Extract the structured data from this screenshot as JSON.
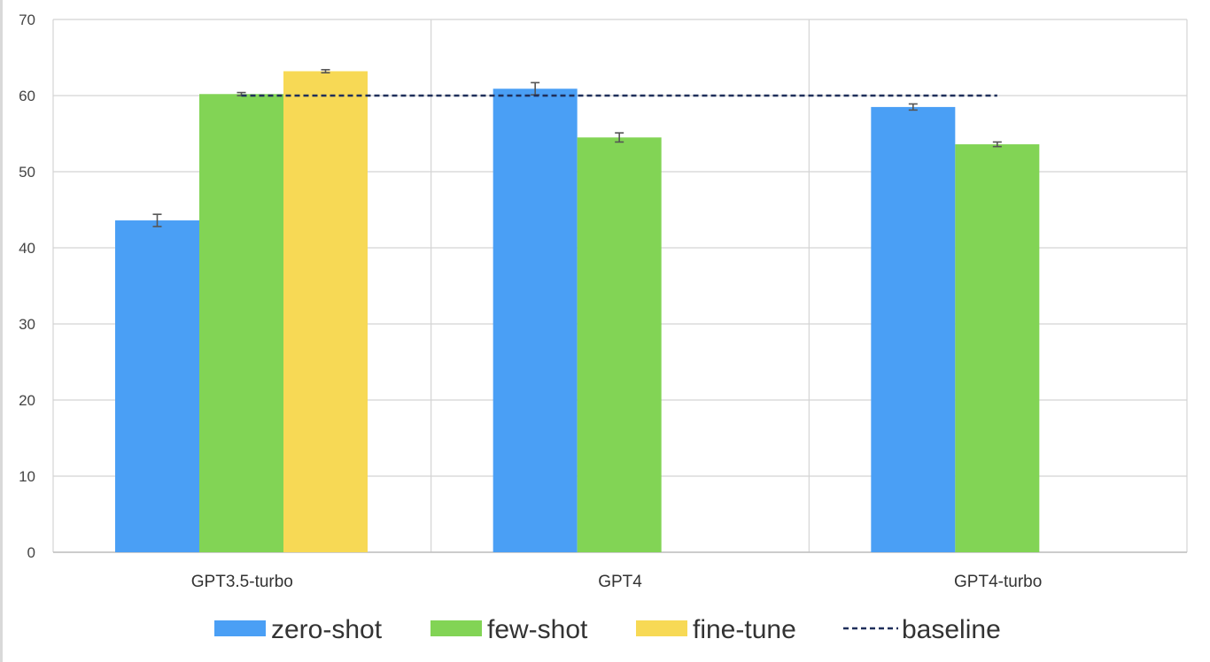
{
  "chart_data": {
    "type": "bar",
    "categories": [
      "GPT3.5-turbo",
      "GPT4",
      "GPT4-turbo"
    ],
    "series": [
      {
        "name": "zero-shot",
        "color": "#4a9ff5",
        "values": [
          43.6,
          60.9,
          58.5
        ],
        "errors": [
          0.8,
          0.8,
          0.4
        ]
      },
      {
        "name": "few-shot",
        "color": "#82d455",
        "values": [
          60.2,
          54.5,
          53.6
        ],
        "errors": [
          0.2,
          0.6,
          0.3
        ]
      },
      {
        "name": "fine-tune",
        "color": "#f7d955",
        "values": [
          63.2,
          null,
          null
        ],
        "errors": [
          0.2,
          null,
          null
        ]
      }
    ],
    "baseline": {
      "name": "baseline",
      "value": 60.0,
      "color": "#1f2f5a",
      "style": "dashed"
    },
    "ylim": [
      0,
      70
    ],
    "yticks": [
      "0",
      "10",
      "20",
      "30",
      "40",
      "50",
      "60",
      "70"
    ],
    "grid": true,
    "legend_position": "bottom",
    "title": "",
    "xlabel": "",
    "ylabel": ""
  }
}
